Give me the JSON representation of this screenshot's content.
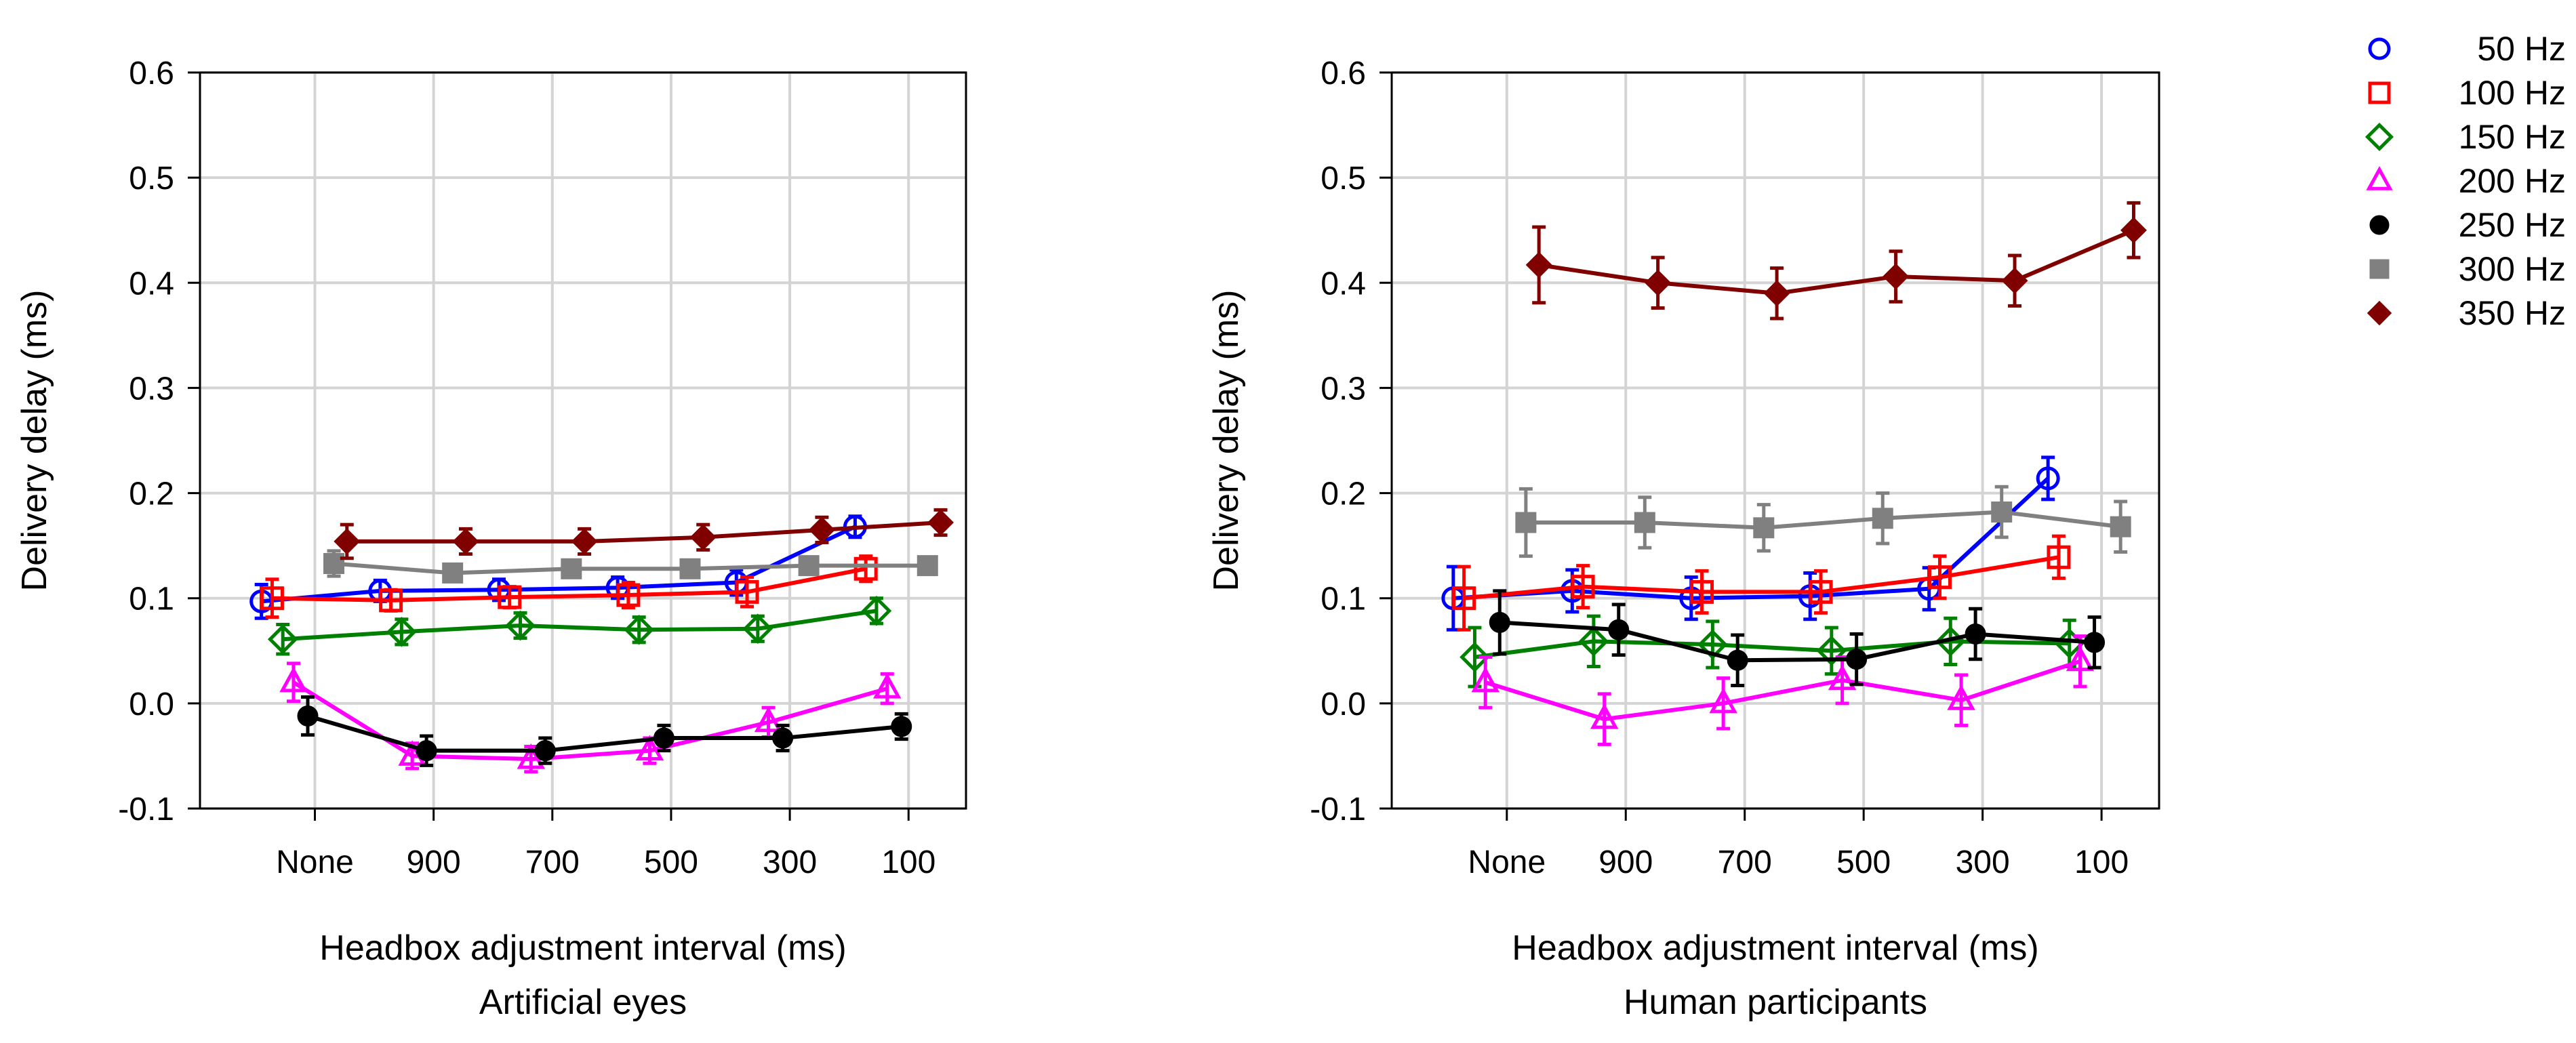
{
  "chart_data": [
    {
      "type": "line",
      "title": "Artificial eyes",
      "xlabel": "Headbox adjustment interval (ms)",
      "ylabel": "Delivery delay (ms)",
      "categories": [
        "None",
        "900",
        "700",
        "500",
        "300",
        "100"
      ],
      "ylim": [
        -0.1,
        0.6
      ],
      "yticks": [
        "0.6",
        "0.5",
        "0.4",
        "0.3",
        "0.2",
        "0.1",
        "0.0",
        "-0.1"
      ],
      "grid": true,
      "series": [
        {
          "name": "50 Hz",
          "values": [
            0.097,
            0.107,
            0.108,
            0.11,
            0.115,
            0.168
          ],
          "err": [
            0.016,
            0.01,
            0.01,
            0.01,
            0.012,
            0.01
          ]
        },
        {
          "name": "100 Hz",
          "values": [
            0.1,
            0.098,
            0.101,
            0.103,
            0.106,
            0.128
          ],
          "err": [
            0.018,
            0.01,
            0.01,
            0.012,
            0.014,
            0.012
          ]
        },
        {
          "name": "150 Hz",
          "values": [
            0.061,
            0.068,
            0.074,
            0.07,
            0.071,
            0.088
          ],
          "err": [
            0.014,
            0.012,
            0.012,
            0.012,
            0.012,
            0.012
          ]
        },
        {
          "name": "200 Hz",
          "values": [
            0.02,
            -0.05,
            -0.053,
            -0.045,
            -0.018,
            0.014
          ],
          "err": [
            0.018,
            0.012,
            0.012,
            0.012,
            0.014,
            0.014
          ]
        },
        {
          "name": "250 Hz",
          "values": [
            -0.012,
            -0.045,
            -0.045,
            -0.033,
            -0.033,
            -0.022
          ],
          "err": [
            0.018,
            0.014,
            0.012,
            0.012,
            0.012,
            0.012
          ]
        },
        {
          "name": "300 Hz",
          "values": [
            0.133,
            0.124,
            0.128,
            0.128,
            0.131,
            0.131
          ],
          "err": [
            0.012,
            0.008,
            0.008,
            0.008,
            0.008,
            0.008
          ]
        },
        {
          "name": "350 Hz",
          "values": [
            0.154,
            0.154,
            0.154,
            0.158,
            0.165,
            0.172
          ],
          "err": [
            0.016,
            0.012,
            0.012,
            0.012,
            0.012,
            0.012
          ]
        }
      ]
    },
    {
      "type": "line",
      "title": "Human participants",
      "xlabel": "Headbox adjustment interval (ms)",
      "ylabel": "Delivery delay (ms)",
      "categories": [
        "None",
        "900",
        "700",
        "500",
        "300",
        "100"
      ],
      "ylim": [
        -0.1,
        0.6
      ],
      "yticks": [
        "0.6",
        "0.5",
        "0.4",
        "0.3",
        "0.2",
        "0.1",
        "0.0",
        "-0.1"
      ],
      "grid": true,
      "series": [
        {
          "name": "50 Hz",
          "values": [
            0.1,
            0.107,
            0.1,
            0.102,
            0.109,
            0.214
          ],
          "err": [
            0.03,
            0.02,
            0.02,
            0.022,
            0.02,
            0.02
          ]
        },
        {
          "name": "100 Hz",
          "values": [
            0.1,
            0.111,
            0.106,
            0.106,
            0.12,
            0.139
          ],
          "err": [
            0.03,
            0.02,
            0.02,
            0.02,
            0.02,
            0.02
          ]
        },
        {
          "name": "150 Hz",
          "values": [
            0.044,
            0.059,
            0.056,
            0.05,
            0.059,
            0.057
          ],
          "err": [
            0.028,
            0.024,
            0.022,
            0.022,
            0.022,
            0.022
          ]
        },
        {
          "name": "200 Hz",
          "values": [
            0.02,
            -0.015,
            0.0,
            0.022,
            0.003,
            0.04
          ],
          "err": [
            0.024,
            0.024,
            0.024,
            0.022,
            0.024,
            0.024
          ]
        },
        {
          "name": "250 Hz",
          "values": [
            0.077,
            0.07,
            0.041,
            0.042,
            0.066,
            0.058
          ],
          "err": [
            0.03,
            0.024,
            0.024,
            0.024,
            0.024,
            0.024
          ]
        },
        {
          "name": "300 Hz",
          "values": [
            0.172,
            0.172,
            0.167,
            0.176,
            0.182,
            0.168
          ],
          "err": [
            0.032,
            0.024,
            0.022,
            0.024,
            0.024,
            0.024
          ]
        },
        {
          "name": "350 Hz",
          "values": [
            0.417,
            0.4,
            0.39,
            0.406,
            0.402,
            0.45
          ],
          "err": [
            0.036,
            0.024,
            0.024,
            0.024,
            0.024,
            0.026
          ]
        }
      ]
    }
  ],
  "legend": {
    "position": "top-right",
    "items": [
      {
        "label": "50 Hz",
        "color": "#0000ff",
        "marker": "open-circle"
      },
      {
        "label": "100 Hz",
        "color": "#ff0000",
        "marker": "open-square"
      },
      {
        "label": "150 Hz",
        "color": "#008000",
        "marker": "open-diamond"
      },
      {
        "label": "200 Hz",
        "color": "#ff00ff",
        "marker": "open-triangle"
      },
      {
        "label": "250 Hz",
        "color": "#000000",
        "marker": "filled-circle"
      },
      {
        "label": "300 Hz",
        "color": "#808080",
        "marker": "filled-square"
      },
      {
        "label": "350 Hz",
        "color": "#800000",
        "marker": "filled-diamond"
      }
    ]
  }
}
